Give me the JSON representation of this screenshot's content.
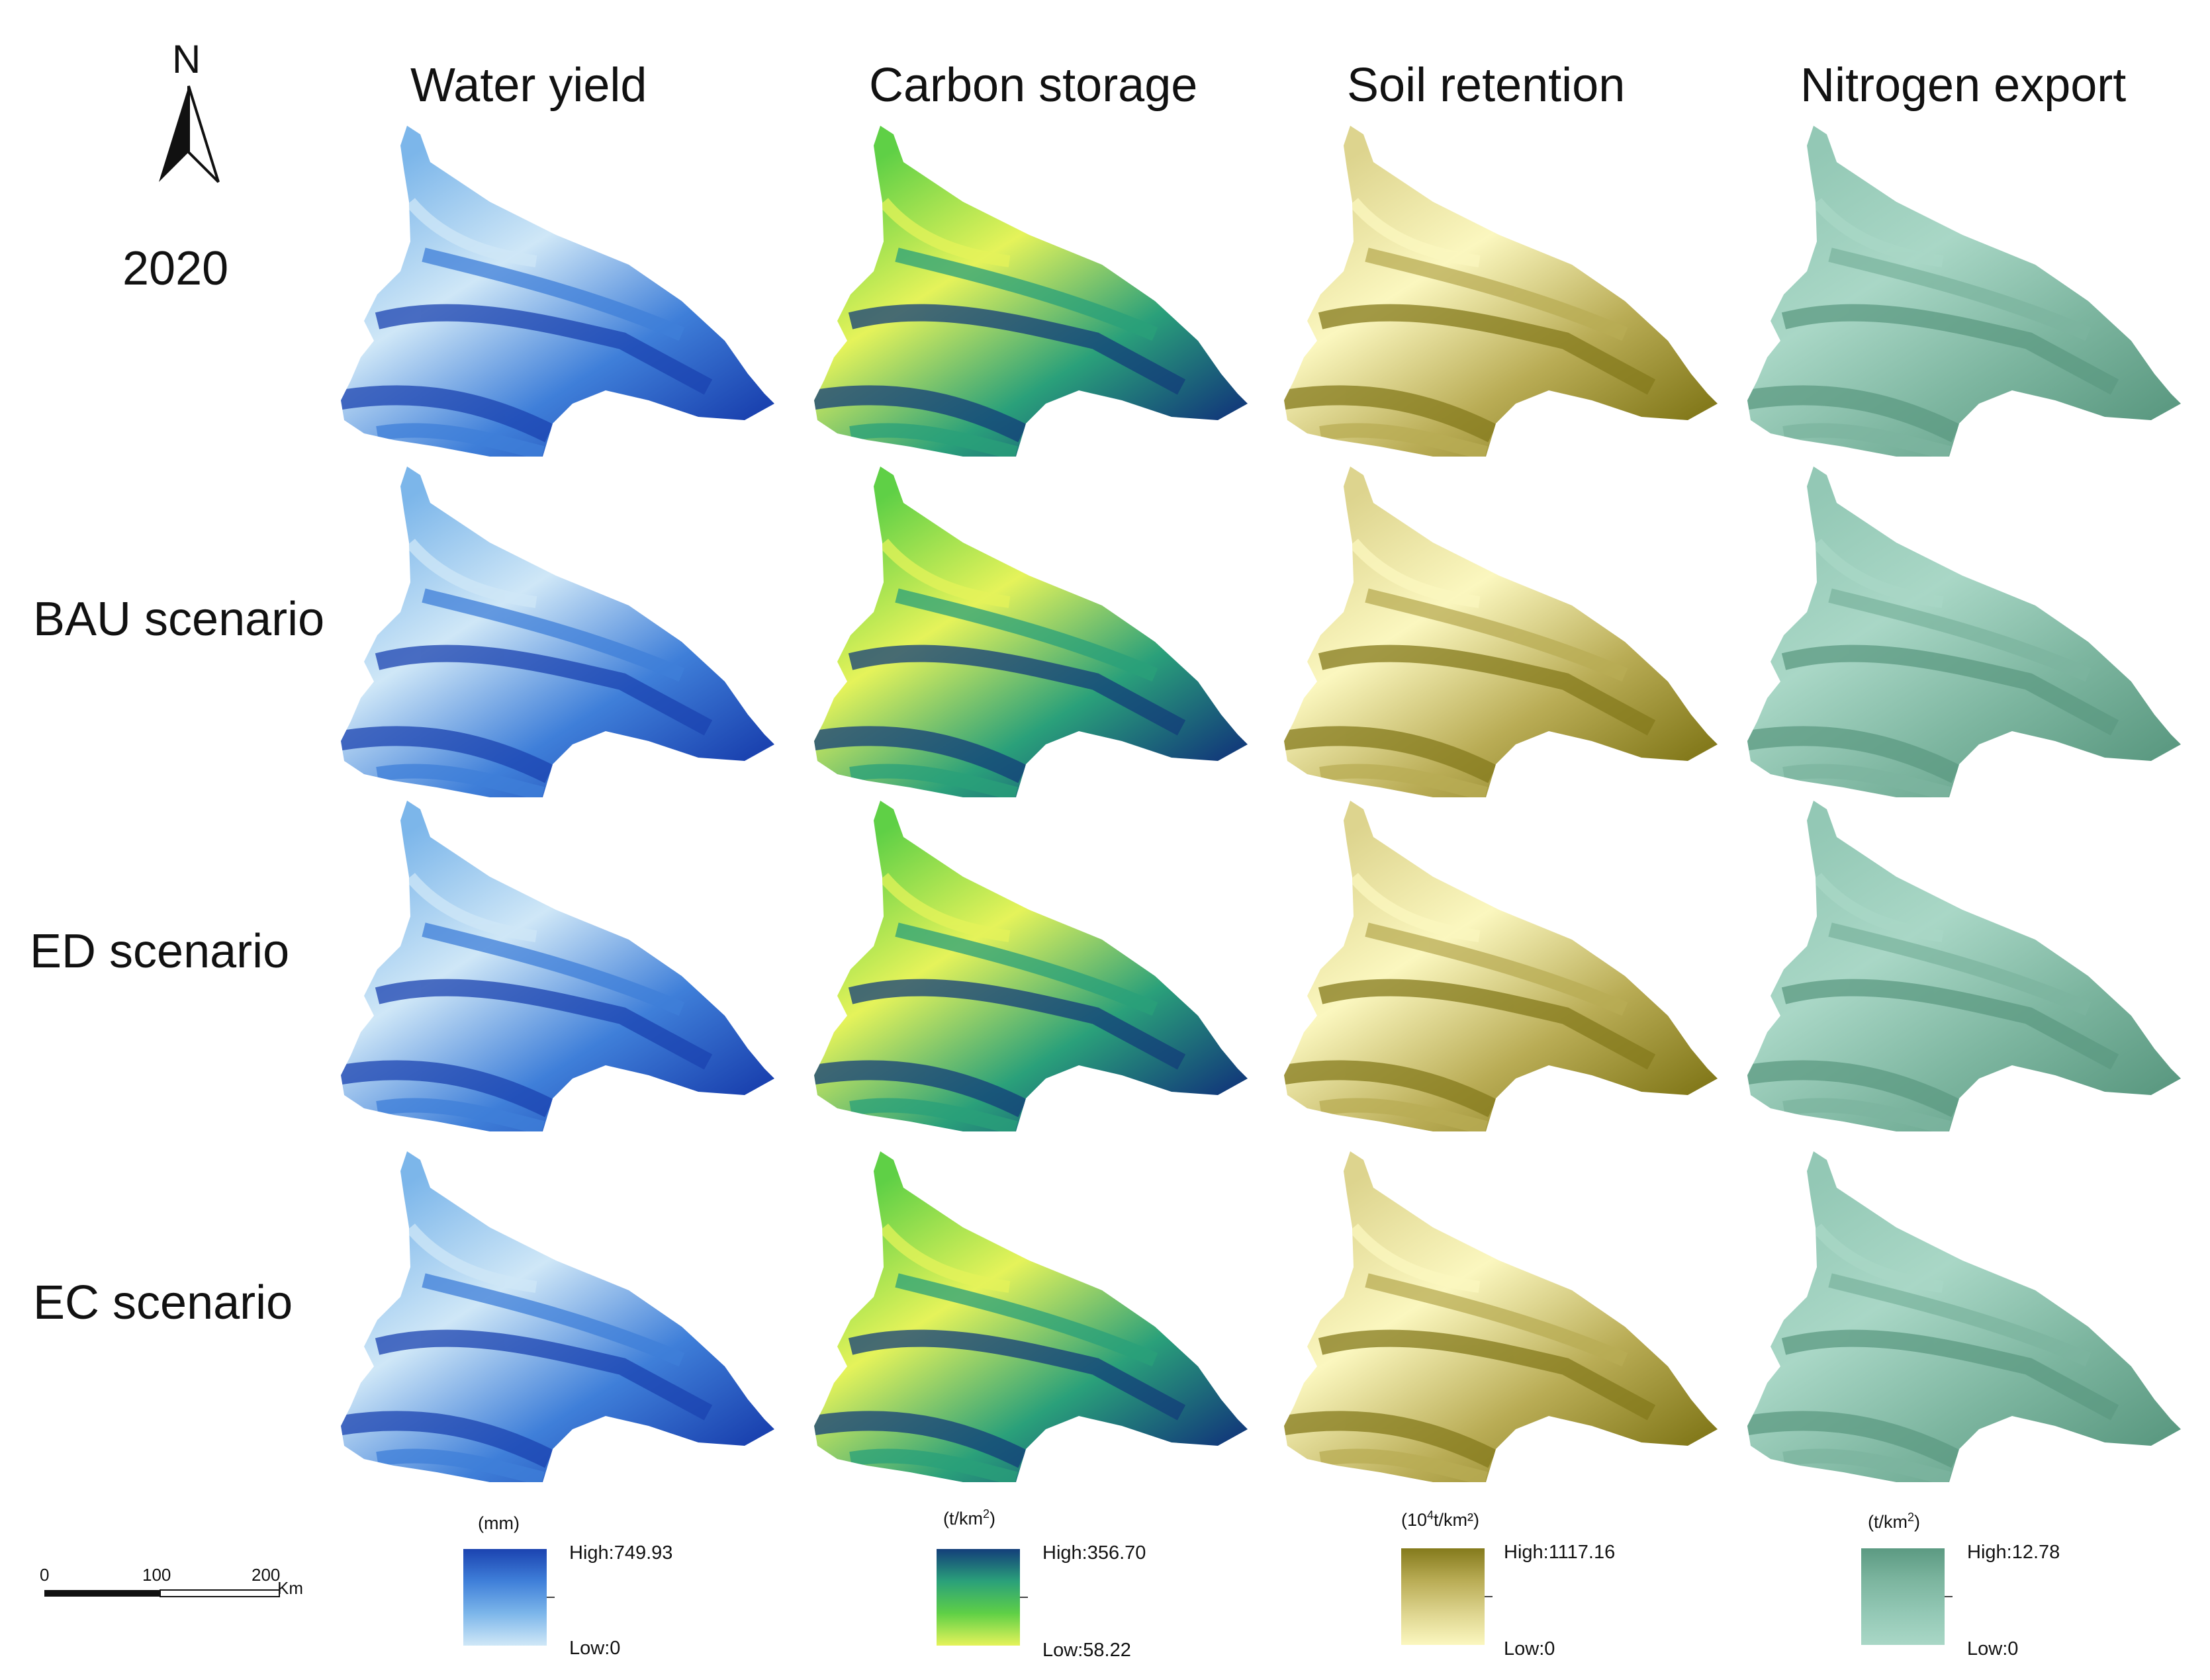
{
  "north_arrow": {
    "letter": "N"
  },
  "columns": [
    {
      "title": "Water yield",
      "colors": [
        "#cfe7f7",
        "#7cb6ea",
        "#3f7fd9",
        "#1b43b0"
      ],
      "legend": {
        "unit_base": "(mm)",
        "unit_sup": "",
        "unit_rest": "",
        "high": "High:749.93",
        "low": "Low:0"
      }
    },
    {
      "title": "Carbon storage",
      "colors": [
        "#e5f35a",
        "#5fd046",
        "#2aa07a",
        "#133e7a"
      ],
      "legend": {
        "unit_base": "(t/km",
        "unit_sup": "2",
        "unit_rest": ")",
        "high": "High:356.70",
        "low": "Low:58.22"
      }
    },
    {
      "title": "Soil retention",
      "colors": [
        "#fbf7bf",
        "#ddd48e",
        "#b9ac55",
        "#847a1c"
      ],
      "legend": {
        "unit_base": "(10",
        "unit_sup": "4",
        "unit_rest": "t/km²)",
        "high": "High:1117.16",
        "low": "Low:0"
      }
    },
    {
      "title": "Nitrogen export",
      "colors": [
        "#a9d7c6",
        "#93c8b5",
        "#7cb59f",
        "#5c9a82"
      ],
      "legend": {
        "unit_base": "(t/km",
        "unit_sup": "2",
        "unit_rest": ")",
        "high": "High:12.78",
        "low": "Low:0"
      }
    }
  ],
  "rows": [
    {
      "label": "2020"
    },
    {
      "label": "BAU scenario"
    },
    {
      "label": "ED scenario"
    },
    {
      "label": "EC scenario"
    }
  ],
  "scale_bar": {
    "ticks": [
      "0",
      "100",
      "200"
    ],
    "unit": "Km"
  }
}
